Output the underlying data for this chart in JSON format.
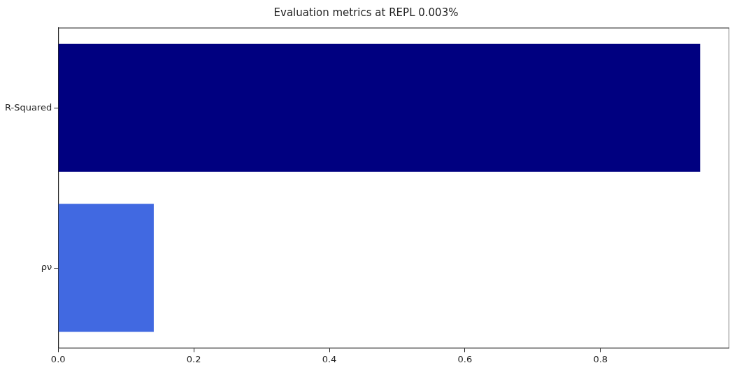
{
  "chart_data": {
    "type": "bar",
    "orientation": "horizontal",
    "title": "Evaluation metrics at REPL 0.003%",
    "categories": [
      "R-Squared",
      "ρν"
    ],
    "values": [
      0.947,
      0.141
    ],
    "colors": [
      "#000080",
      "#4169e1"
    ],
    "xlim": [
      0,
      0.99
    ],
    "xticks": [
      {
        "value": 0,
        "label": "0.0"
      },
      0.2,
      0.4,
      0.6,
      0.8
    ],
    "grid": false,
    "legend": false
  }
}
